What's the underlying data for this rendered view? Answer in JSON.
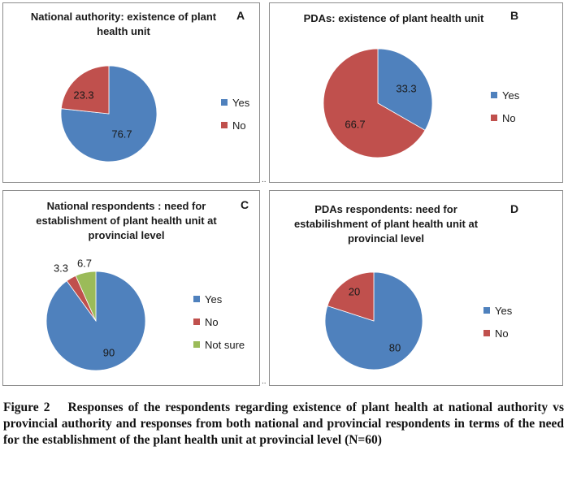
{
  "chart_data": [
    {
      "id": "A",
      "type": "pie",
      "title": "National authority: existence of plant health unit",
      "categories": [
        "Yes",
        "No"
      ],
      "values": [
        76.7,
        23.3
      ],
      "colors": [
        "#4f81bd",
        "#c0504d"
      ],
      "legend": "right"
    },
    {
      "id": "B",
      "type": "pie",
      "title": "PDAs: existence of plant health unit",
      "categories": [
        "Yes",
        "No"
      ],
      "values": [
        33.3,
        66.7
      ],
      "colors": [
        "#4f81bd",
        "#c0504d"
      ],
      "legend": "right"
    },
    {
      "id": "C",
      "type": "pie",
      "title": "National respondents : need for establishment of plant health unit at provincial level",
      "categories": [
        "Yes",
        "No",
        "Not sure"
      ],
      "values": [
        90,
        3.3,
        6.7
      ],
      "colors": [
        "#4f81bd",
        "#c0504d",
        "#9bbb59"
      ],
      "legend": "right"
    },
    {
      "id": "D",
      "type": "pie",
      "title": "PDAs respondents: need for estabilishment of plant health unit at provincial level",
      "categories": [
        "Yes",
        "No"
      ],
      "values": [
        80,
        20
      ],
      "colors": [
        "#4f81bd",
        "#c0504d"
      ],
      "legend": "right"
    }
  ],
  "caption": {
    "figure_label": "Figure 2",
    "text": "Responses of the respondents regarding existence of plant health at national authority vs provincial authority and responses from both national and provincial respondents in terms of the need for the establishment of the plant health unit at provincial level (N=60)"
  },
  "separators": [
    "..",
    ".."
  ]
}
